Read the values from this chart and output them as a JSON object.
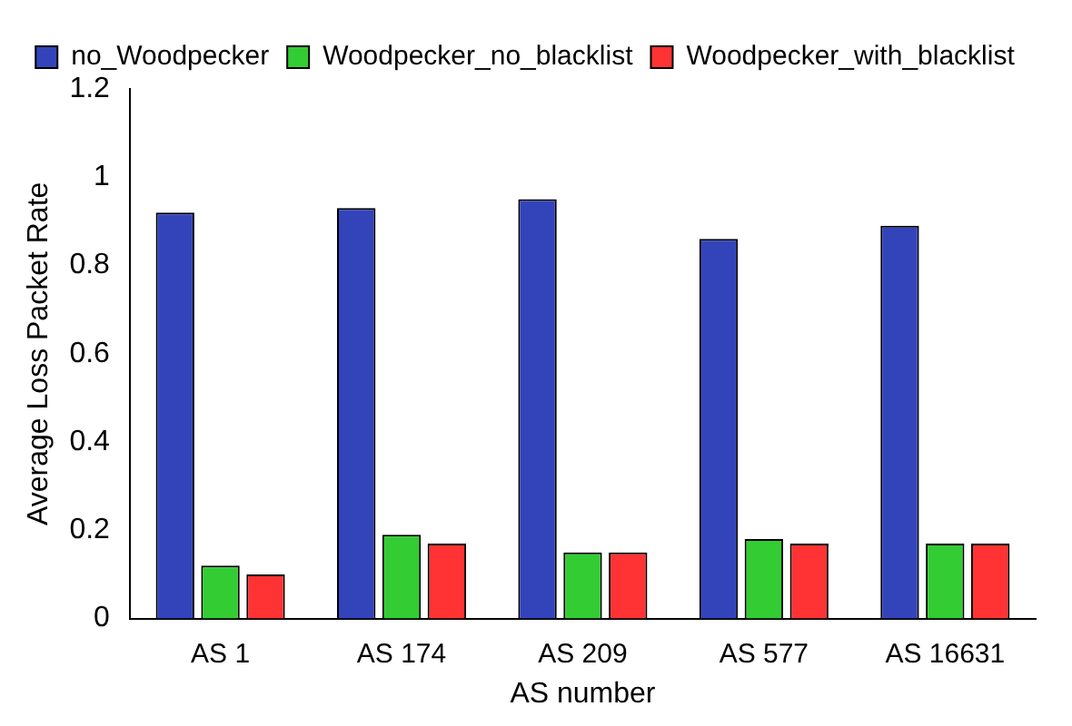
{
  "chart_data": {
    "type": "bar",
    "xlabel": "AS number",
    "ylabel": "Average Loss Packet Rate",
    "categories": [
      "AS 1",
      "AS 174",
      "AS 209",
      "AS 577",
      "AS 16631"
    ],
    "series": [
      {
        "name": "no_Woodpecker",
        "color": "#3344bb",
        "values": [
          0.92,
          0.93,
          0.95,
          0.86,
          0.89
        ]
      },
      {
        "name": "Woodpecker_no_blacklist",
        "color": "#33cc33",
        "values": [
          0.12,
          0.19,
          0.15,
          0.18,
          0.17
        ]
      },
      {
        "name": "Woodpecker_with_blacklist",
        "color": "#ff3333",
        "values": [
          0.1,
          0.17,
          0.15,
          0.17,
          0.17
        ]
      }
    ],
    "ylim": [
      0,
      1.2
    ],
    "yticks": [
      0,
      0.2,
      0.4,
      0.6,
      0.8,
      1,
      1.2
    ],
    "grid": false,
    "legend": "top"
  }
}
